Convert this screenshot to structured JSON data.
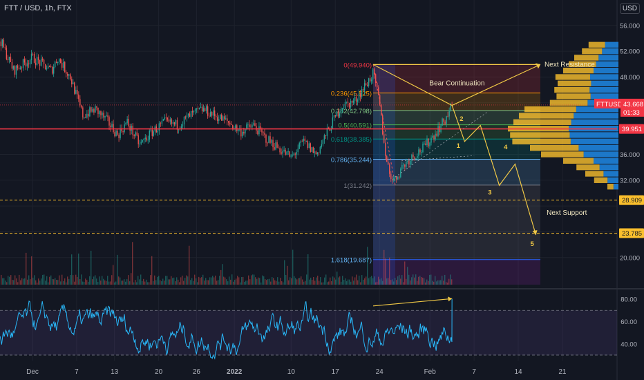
{
  "header": {
    "symbol": "FTT / USD, 1h, FTX",
    "currency": "USD"
  },
  "colors": {
    "bg": "#131722",
    "grid": "#1e222d",
    "up": "#26a69a",
    "down": "#ef5350",
    "annot": "#f0c846",
    "rsi": "#29b6f6",
    "axis_text": "#b2b5be"
  },
  "chart_data": [
    {
      "type": "candlestick",
      "pane": "price",
      "y_axis": {
        "ticks": [
          20,
          24,
          28,
          32,
          36,
          40,
          44,
          48,
          52,
          56
        ],
        "tick_labels": [
          "20.000",
          "24.000",
          "28.000",
          "32.000",
          "36.000",
          "40.000",
          "44.000",
          "48.000",
          "52.000",
          "56.000"
        ],
        "range": [
          15.8,
          57.8
        ]
      },
      "x_axis": {
        "tick_labels": [
          "Dec",
          "7",
          "13",
          "20",
          "26",
          "2022",
          "10",
          "17",
          "24",
          "Feb",
          "7",
          "14",
          "21"
        ],
        "tick_days": [
          0,
          7,
          13,
          20,
          26,
          32,
          41,
          48,
          55,
          63,
          70,
          77,
          84
        ]
      },
      "price_path": [
        [
          -5,
          53.5
        ],
        [
          -3,
          49
        ],
        [
          0,
          51
        ],
        [
          3,
          49
        ],
        [
          4,
          51
        ],
        [
          6,
          48
        ],
        [
          8,
          42
        ],
        [
          10,
          43
        ],
        [
          12,
          41
        ],
        [
          13.5,
          39
        ],
        [
          15,
          41
        ],
        [
          17,
          37.5
        ],
        [
          19,
          39.5
        ],
        [
          21,
          41
        ],
        [
          23,
          40.5
        ],
        [
          25,
          42
        ],
        [
          27,
          43
        ],
        [
          29,
          42
        ],
        [
          31,
          41
        ],
        [
          33,
          39.5
        ],
        [
          35,
          40.5
        ],
        [
          37,
          38.5
        ],
        [
          39,
          37
        ],
        [
          41,
          35.5
        ],
        [
          43,
          38
        ],
        [
          45,
          36
        ],
        [
          47,
          40
        ],
        [
          49,
          43.5
        ],
        [
          51,
          44.2
        ],
        [
          54,
          48.5
        ],
        [
          55,
          44
        ],
        [
          55.8,
          37
        ],
        [
          56.6,
          33
        ],
        [
          57.5,
          32
        ],
        [
          58.5,
          34
        ],
        [
          60,
          35.5
        ],
        [
          62,
          37
        ],
        [
          64,
          39.5
        ],
        [
          65.5,
          41.5
        ],
        [
          66.5,
          43.6
        ]
      ],
      "labels": {
        "symbol_tag": "FTTUSD",
        "last_price": "43.668",
        "countdown": "01:33",
        "poc_level": "39.951",
        "support_1": "28.909",
        "support_2": "23.785"
      },
      "levels": {
        "last_price": 43.668,
        "poc": 39.951,
        "support_1": 28.909,
        "support_2": 23.785
      },
      "fibonacci": [
        {
          "ratio": 0,
          "price": 49.94,
          "label": "0(49.940)"
        },
        {
          "ratio": 0.236,
          "price": 45.525,
          "label": "0.236(45.525)"
        },
        {
          "ratio": 0.382,
          "price": 42.798,
          "label": "0.382(42.798)"
        },
        {
          "ratio": 0.5,
          "price": 40.591,
          "label": "0.5(40.591)"
        },
        {
          "ratio": 0.618,
          "price": 38.385,
          "label": "0.618(38.385)"
        },
        {
          "ratio": 0.786,
          "price": 35.244,
          "label": "0.786(35.244)"
        },
        {
          "ratio": 1,
          "price": 31.242,
          "label": "1(31.242)"
        },
        {
          "ratio": 1.618,
          "price": 19.687,
          "label": "1.618(19.687)"
        }
      ],
      "annotations": {
        "bear_continuation": "Bear Continuation",
        "next_resistance": "Next Resistance",
        "next_support": "Next Support",
        "wave_labels": [
          "1",
          "2",
          "3",
          "4",
          "5"
        ]
      },
      "wave_path": [
        [
          66.5,
          43.6
        ],
        [
          68.5,
          38
        ],
        [
          71,
          40.5
        ],
        [
          74,
          31.2
        ],
        [
          76.5,
          34.5
        ],
        [
          79.8,
          23.5
        ]
      ],
      "wave_label_points": [
        [
          67.5,
          37
        ],
        [
          68,
          41.2
        ],
        [
          72.5,
          29.8
        ],
        [
          75,
          36.8
        ],
        [
          79.2,
          21.8
        ]
      ],
      "volume_profile": [
        {
          "price": 53,
          "value": 0.27
        },
        {
          "price": 52,
          "value": 0.33
        },
        {
          "price": 51,
          "value": 0.4
        },
        {
          "price": 50,
          "value": 0.45
        },
        {
          "price": 49,
          "value": 0.5
        },
        {
          "price": 48,
          "value": 0.57
        },
        {
          "price": 47,
          "value": 0.55
        },
        {
          "price": 46,
          "value": 0.58
        },
        {
          "price": 45,
          "value": 0.56
        },
        {
          "price": 44,
          "value": 0.62
        },
        {
          "price": 43,
          "value": 0.85
        },
        {
          "price": 42,
          "value": 0.9
        },
        {
          "price": 41,
          "value": 0.95
        },
        {
          "price": 40,
          "value": 1.0
        },
        {
          "price": 39,
          "value": 0.98
        },
        {
          "price": 38,
          "value": 0.96
        },
        {
          "price": 37,
          "value": 0.8
        },
        {
          "price": 36,
          "value": 0.7
        },
        {
          "price": 35,
          "value": 0.5
        },
        {
          "price": 34,
          "value": 0.38
        },
        {
          "price": 33,
          "value": 0.3
        },
        {
          "price": 32,
          "value": 0.22
        },
        {
          "price": 31,
          "value": 0.1
        }
      ]
    },
    {
      "type": "line",
      "pane": "rsi",
      "y_axis": {
        "ticks": [
          40,
          60,
          80
        ],
        "tick_labels": [
          "40.00",
          "60.00",
          "80.00"
        ],
        "range": [
          25,
          85
        ]
      },
      "band": [
        30,
        70
      ]
    }
  ]
}
